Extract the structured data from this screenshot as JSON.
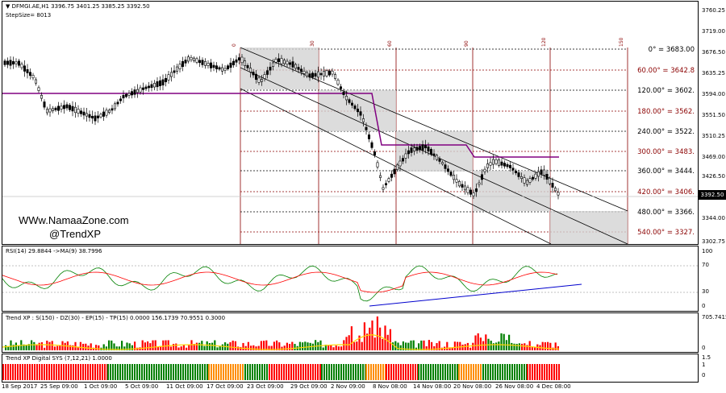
{
  "main": {
    "symbol_line": "DFMGI.AE,H1  3396.75 3401.25 3385.25 3392.50",
    "step_line": "StepSize= 8013",
    "watermark_site": "WWw.NamaaZone.com",
    "watermark_handle": "@TrendXP",
    "current_price": "3392.50",
    "price_axis": [
      "3760.25",
      "3719.00",
      "3676.50",
      "3635.25",
      "3594.00",
      "3551.50",
      "3510.25",
      "3469.00",
      "3426.50",
      "3385.25",
      "3344.00",
      "3302.75"
    ],
    "gann_labels": [
      "0° = 3683.00",
      "60.00° = 3642.8",
      "120.00° = 3602.",
      "180.00° = 3562.",
      "240.00° = 3522.",
      "300.00° = 3483.",
      "360.00° = 3444.",
      "420.00° = 3406.",
      "480.00° = 3366.",
      "540.00° = 3327."
    ],
    "gann_label_colors": [
      "#000000",
      "#8b0000",
      "#000000",
      "#8b0000",
      "#000000",
      "#8b0000",
      "#000000",
      "#8b0000",
      "#000000",
      "#8b0000"
    ],
    "time_ticks": [
      "0",
      "30",
      "60",
      "90",
      "120",
      "150"
    ]
  },
  "rsi": {
    "label": "RSI(14) 29.8844  ->MA(9) 38.7996",
    "axis": [
      "100",
      "70",
      "30",
      "0"
    ]
  },
  "trendxp": {
    "label": "Trend XP : S(150) - DZ(30) - EP(15) - TP(15) 0.0000 156.1739 70.9551 0.3000",
    "axis_top": "705.7415",
    "axis_zero": "0"
  },
  "digital": {
    "label": "Trend XP Digital SYS (7,12,21)  1.0000",
    "axis": [
      "1.5",
      "1",
      "0"
    ]
  },
  "xaxis": [
    "18 Sep 2017",
    "25 Sep 09:00",
    "1 Oct 09:00",
    "5 Oct 09:00",
    "11 Oct 09:00",
    "17 Oct 09:00",
    "23 Oct 09:00",
    "29 Oct 09:00",
    "2 Nov 09:00",
    "8 Nov 08:00",
    "14 Nov 08:00",
    "20 Nov 08:00",
    "26 Nov 08:00",
    "4 Dec 08:00"
  ],
  "colors": {
    "bull": "#008000",
    "bear": "#ff0000",
    "orange": "#ff8c00",
    "purple": "#800080",
    "level": "#8b0000",
    "rsi": "#008000",
    "rsi_ma": "#ff0000",
    "trend_line": "#0000cd",
    "signal": "#ffd700"
  }
}
